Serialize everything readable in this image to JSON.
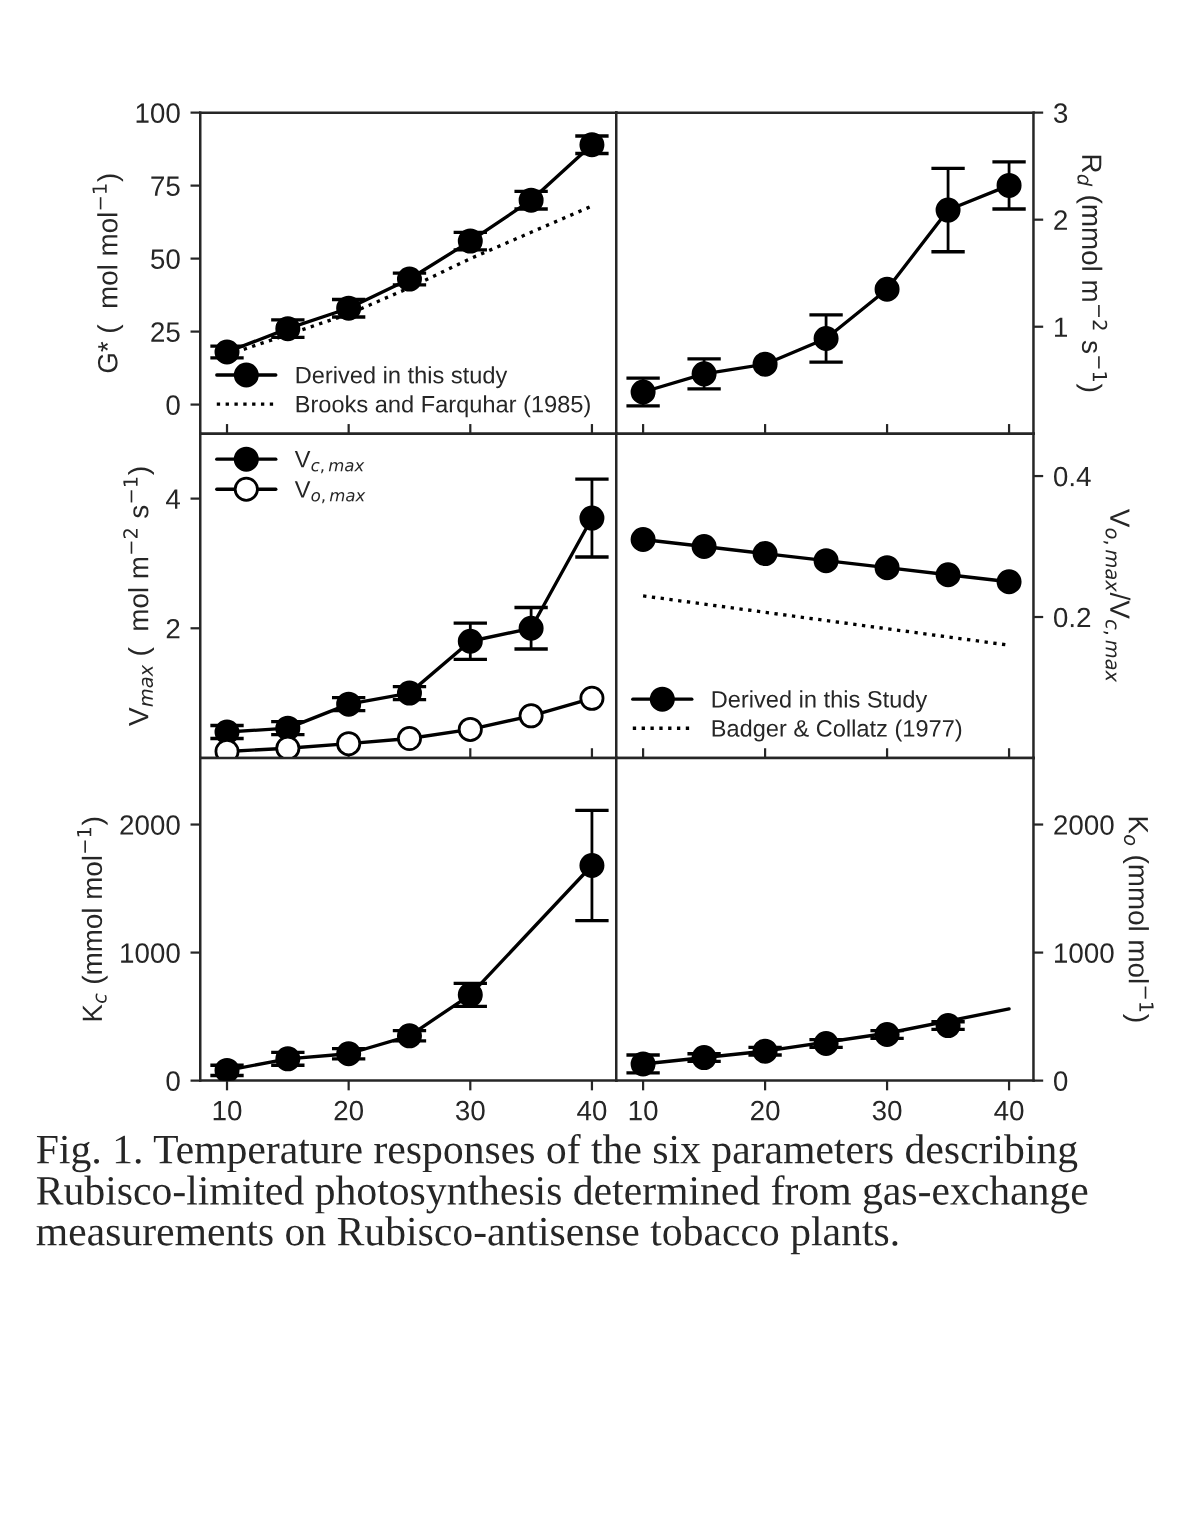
{
  "chart_data": [
    {
      "type": "line",
      "x": [
        10,
        15,
        20,
        25,
        30,
        35,
        40
      ],
      "ylabel": "G* (  mol mol$^{−1}$)",
      "xlim": [
        7.8,
        42
      ],
      "xticks": [
        10,
        20,
        30,
        40
      ],
      "ylim": [
        -10,
        100
      ],
      "yticks": [
        0,
        25,
        50,
        75,
        100
      ],
      "tick_labels": "y",
      "legend": "bottom left",
      "series": [
        {
          "name": "Derived in this study",
          "type": "line",
          "color": "#000000",
          "marker": "circle",
          "line_style": "solid",
          "values": [
            18,
            26,
            33,
            43,
            56,
            70,
            89
          ],
          "errors": [
            2,
            3,
            3,
            2,
            3,
            3,
            3
          ]
        },
        {
          "name": "Brooks and Farquhar (1985)",
          "type": "line",
          "color": "#000000",
          "marker": "none",
          "line_style": "dotted",
          "x": [
            10,
            20,
            25,
            30,
            35,
            40
          ],
          "values": [
            17,
            31,
            40,
            50,
            59,
            68
          ]
        }
      ]
    },
    {
      "type": "line",
      "x": [
        10,
        15,
        20,
        25,
        30,
        35,
        40
      ],
      "y2label": "R$_{d}$ (mmol m$^{−2}$ s$^{−1}$)",
      "xlim": [
        7.8,
        42
      ],
      "xticks": [
        10,
        20,
        30,
        40
      ],
      "y2lim": [
        0,
        3
      ],
      "y2ticks": [
        1,
        2,
        3
      ],
      "tick_labels": "y",
      "series": [
        {
          "type": "line",
          "axis": "y2",
          "color": "#000000",
          "marker": "circle",
          "line_style": "solid",
          "values": [
            0.39,
            0.56,
            0.65,
            0.89,
            1.35,
            2.09,
            2.32
          ],
          "errors": [
            0.13,
            0.14,
            null,
            0.22,
            null,
            0.39,
            0.22
          ]
        }
      ]
    },
    {
      "type": "line",
      "x": [
        10,
        15,
        20,
        25,
        30,
        35,
        40
      ],
      "ylabel": "V$_{max}$ (  mol m$^{−2}$ s$^{−1}$)",
      "xlim": [
        7.8,
        42
      ],
      "xticks": [
        10,
        20,
        30,
        40
      ],
      "ylim": [
        0,
        5
      ],
      "yticks": [
        2,
        4
      ],
      "tick_labels": "y",
      "legend": "top left",
      "series": [
        {
          "name": "V$_{c,max}$",
          "type": "line",
          "color": "#000000",
          "marker": "circle",
          "line_style": "solid",
          "values": [
            0.4,
            0.46,
            0.83,
            1.0,
            1.8,
            2.0,
            3.7
          ],
          "errors": [
            0.1,
            0.1,
            0.1,
            0.1,
            0.28,
            0.32,
            0.6
          ]
        },
        {
          "name": "V$_{o,max}$",
          "type": "line",
          "color": "#ffffff",
          "marker": "circle",
          "line_style": "solid",
          "values": [
            0.1,
            0.15,
            0.22,
            0.3,
            0.44,
            0.65,
            0.92
          ]
        }
      ]
    },
    {
      "type": "line",
      "x": [
        10,
        15,
        20,
        25,
        30,
        35,
        40
      ],
      "y2label": "V$_{o,max}$/V$_{c,max}$",
      "xlim": [
        7.8,
        42
      ],
      "xticks": [
        10,
        20,
        30,
        40
      ],
      "y2lim": [
        0,
        0.46
      ],
      "y2ticks": [
        0.2,
        0.4
      ],
      "tick_labels": "y",
      "legend": "bottom left",
      "series": [
        {
          "name": "Derived in this Study",
          "type": "line",
          "axis": "y2",
          "color": "#000000",
          "marker": "circle",
          "line_style": "solid",
          "values": [
            0.31,
            0.3,
            0.29,
            0.28,
            0.27,
            0.26,
            0.25
          ]
        },
        {
          "name": "Badger & Collatz (1977)",
          "type": "line",
          "axis": "y2",
          "color": "#000000",
          "marker": "none",
          "line_style": "dotted",
          "x": [
            10,
            40
          ],
          "values": [
            0.23,
            0.16
          ]
        }
      ]
    },
    {
      "type": "line",
      "x": [
        10,
        15,
        20,
        25,
        30,
        40
      ],
      "ylabel": "K$_{c}$ (mmol mol$^{−1}$)",
      "xlim": [
        7.8,
        42
      ],
      "xticks": [
        10,
        20,
        30,
        40
      ],
      "ylim": [
        0,
        2520
      ],
      "yticks": [
        0,
        1000,
        2000
      ],
      "series": [
        {
          "type": "line",
          "color": "#000000",
          "marker": "circle",
          "line_style": "solid",
          "values": [
            80,
            170,
            210,
            350,
            670,
            1680
          ],
          "errors": [
            40,
            50,
            40,
            40,
            90,
            430
          ]
        }
      ]
    },
    {
      "type": "line",
      "x": [
        10,
        15,
        20,
        25,
        30,
        35
      ],
      "y2label": "K$_{o}$ (mmol mol$^{−1}$)",
      "xlim": [
        7.8,
        42
      ],
      "xticks": [
        10,
        20,
        30,
        40
      ],
      "y2lim": [
        0,
        2520
      ],
      "y2ticks": [
        0,
        1000,
        2000
      ],
      "annotations": [
        "Fig. 1. Temperature responses of the six parameters describing Rubisco-limited photosynthesis determined from gas-exchange measurements on Rubisco-antisense tobacco plants."
      ],
      "series": [
        {
          "type": "scatter",
          "axis": "y2",
          "color": "#000000",
          "marker": "circle",
          "values": [
            130,
            180,
            230,
            290,
            360,
            430
          ],
          "errors": [
            70,
            30,
            30,
            30,
            30,
            30
          ]
        },
        {
          "type": "line",
          "axis": "y2",
          "color": "#000000",
          "marker": "none",
          "line_style": "solid",
          "x": [
            10,
            20,
            30,
            40
          ],
          "values": [
            130,
            230,
            370,
            560
          ]
        }
      ]
    }
  ]
}
